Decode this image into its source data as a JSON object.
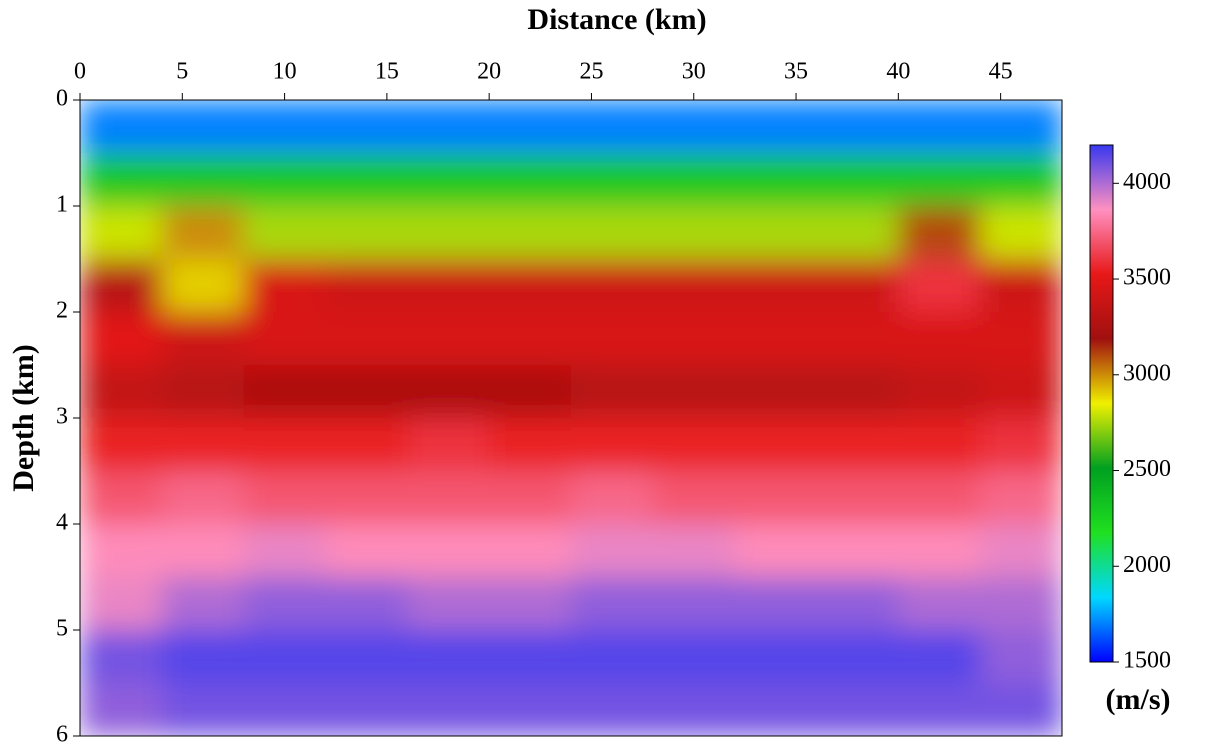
{
  "chart_data": {
    "type": "heatmap",
    "x_label": "Distance (km)",
    "y_label": "Depth (km)",
    "colorbar_label": "(m/s)",
    "x_edges": [
      0,
      4,
      8,
      12,
      16,
      20,
      24,
      28,
      32,
      36,
      40,
      44,
      48
    ],
    "y_edges": [
      0,
      0.5,
      1,
      1.5,
      2,
      2.5,
      3,
      3.5,
      4,
      4.5,
      5,
      5.5,
      6
    ],
    "values": [
      [
        1700,
        1700,
        1700,
        1700,
        1700,
        1700,
        1700,
        1700,
        1700,
        1700,
        1700,
        1700
      ],
      [
        2300,
        2300,
        2300,
        2300,
        2300,
        2300,
        2300,
        2300,
        2300,
        2300,
        2300,
        2300
      ],
      [
        2800,
        3000,
        2750,
        2750,
        2750,
        2750,
        2750,
        2750,
        2750,
        2750,
        3100,
        2800
      ],
      [
        3300,
        2900,
        3450,
        3400,
        3400,
        3400,
        3400,
        3400,
        3400,
        3400,
        3600,
        3400
      ],
      [
        3500,
        3400,
        3450,
        3450,
        3450,
        3450,
        3450,
        3450,
        3450,
        3450,
        3450,
        3450
      ],
      [
        3350,
        3300,
        3250,
        3250,
        3250,
        3250,
        3300,
        3300,
        3300,
        3300,
        3350,
        3400
      ],
      [
        3550,
        3550,
        3550,
        3550,
        3600,
        3550,
        3550,
        3550,
        3550,
        3550,
        3550,
        3600
      ],
      [
        3700,
        3750,
        3700,
        3700,
        3700,
        3700,
        3750,
        3700,
        3700,
        3700,
        3700,
        3750
      ],
      [
        3850,
        3850,
        3900,
        3850,
        3850,
        3850,
        3900,
        3900,
        3850,
        3850,
        3850,
        3900
      ],
      [
        3900,
        4000,
        4050,
        4050,
        4000,
        4000,
        4050,
        4050,
        4050,
        4050,
        4000,
        4000
      ],
      [
        4100,
        4150,
        4150,
        4150,
        4150,
        4150,
        4150,
        4150,
        4150,
        4150,
        4150,
        4050
      ],
      [
        4050,
        4100,
        4100,
        4100,
        4100,
        4100,
        4100,
        4100,
        4100,
        4100,
        4100,
        4100
      ]
    ],
    "xlim": [
      0,
      48
    ],
    "ylim": [
      0,
      6
    ],
    "y_inverted": true,
    "xticks": [
      0,
      5,
      10,
      15,
      20,
      25,
      30,
      35,
      40,
      45
    ],
    "yticks": [
      0,
      1,
      2,
      3,
      4,
      5,
      6
    ],
    "clim": [
      1500,
      4200
    ],
    "cticks": [
      1500,
      2000,
      2500,
      3000,
      3500,
      4000
    ],
    "colormap": [
      "#0000ff",
      "#00d8ff",
      "#20e020",
      "#00a020",
      "#f0f000",
      "#a01010",
      "#e81818",
      "#ff90c0",
      "#3838f0"
    ]
  }
}
